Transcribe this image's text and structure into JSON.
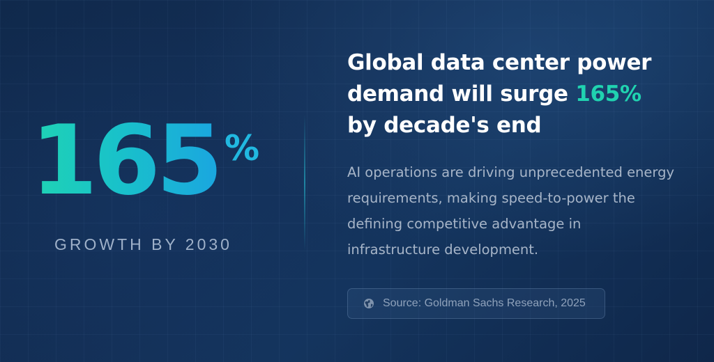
{
  "stat": {
    "number": "165",
    "percent_sign": "%",
    "label": "GROWTH BY 2030"
  },
  "headline": {
    "line1": "Global data center power",
    "line2_prefix": "demand will surge ",
    "line2_accent": "165%",
    "line3": "by decade's end"
  },
  "body": "AI operations are driving unprecedented energy requirements, making speed-to-power the defining competitive advantage in infrastructure development.",
  "source": {
    "icon": "globe-icon",
    "text": "Source: Goldman Sachs Research, 2025"
  },
  "colors": {
    "background": "#132f56",
    "accent_teal": "#20d3b0",
    "accent_blue": "#1aa6e0",
    "headline": "#ffffff",
    "body": "#a7b5c8"
  }
}
